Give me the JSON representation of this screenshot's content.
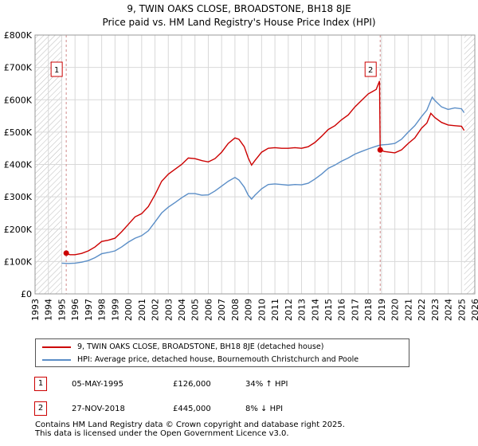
{
  "colors": {
    "price_line": "#cc0000",
    "hpi_line": "#5b8ec7",
    "marker_border": "#cc0000",
    "grid": "#d8d8d8"
  },
  "chart_data": {
    "type": "line",
    "title": "9, TWIN OAKS CLOSE, BROADSTONE, BH18 8JE",
    "subtitle": "Price paid vs. HM Land Registry's House Price Index (HPI)",
    "xlabel": "",
    "ylabel": "",
    "xlim": [
      1993,
      2026
    ],
    "ylim": [
      0,
      800000
    ],
    "x_ticks": [
      "1993",
      "1994",
      "1995",
      "1996",
      "1997",
      "1998",
      "1999",
      "2000",
      "2001",
      "2002",
      "2003",
      "2004",
      "2005",
      "2006",
      "2007",
      "2008",
      "2009",
      "2010",
      "2011",
      "2012",
      "2013",
      "2014",
      "2015",
      "2016",
      "2017",
      "2018",
      "2019",
      "2020",
      "2021",
      "2022",
      "2023",
      "2024",
      "2025",
      "2026"
    ],
    "y_ticks": [
      {
        "value": 0,
        "label": "£0"
      },
      {
        "value": 100000,
        "label": "£100K"
      },
      {
        "value": 200000,
        "label": "£200K"
      },
      {
        "value": 300000,
        "label": "£300K"
      },
      {
        "value": 400000,
        "label": "£400K"
      },
      {
        "value": 500000,
        "label": "£500K"
      },
      {
        "value": 600000,
        "label": "£600K"
      },
      {
        "value": 700000,
        "label": "£700K"
      },
      {
        "value": 800000,
        "label": "£800K"
      }
    ],
    "hatched_before": 1995.0,
    "hatched_after": 2025.2,
    "series": [
      {
        "name": "9, TWIN OAKS CLOSE, BROADSTONE, BH18 8JE (detached house)",
        "color": "#cc0000",
        "points": [
          [
            1995.34,
            126000
          ],
          [
            1995.6,
            121000
          ],
          [
            1996.0,
            121000
          ],
          [
            1996.5,
            125000
          ],
          [
            1997.0,
            133000
          ],
          [
            1997.5,
            145000
          ],
          [
            1998.0,
            162000
          ],
          [
            1998.5,
            166000
          ],
          [
            1999.0,
            172000
          ],
          [
            1999.5,
            192000
          ],
          [
            2000.0,
            215000
          ],
          [
            2000.5,
            238000
          ],
          [
            2001.0,
            248000
          ],
          [
            2001.5,
            270000
          ],
          [
            2002.0,
            306000
          ],
          [
            2002.5,
            348000
          ],
          [
            2003.0,
            370000
          ],
          [
            2003.5,
            385000
          ],
          [
            2004.0,
            400000
          ],
          [
            2004.5,
            420000
          ],
          [
            2005.0,
            418000
          ],
          [
            2005.5,
            412000
          ],
          [
            2006.0,
            408000
          ],
          [
            2006.5,
            418000
          ],
          [
            2007.0,
            438000
          ],
          [
            2007.5,
            465000
          ],
          [
            2008.0,
            482000
          ],
          [
            2008.3,
            478000
          ],
          [
            2008.7,
            455000
          ],
          [
            2009.0,
            420000
          ],
          [
            2009.25,
            398000
          ],
          [
            2009.5,
            412000
          ],
          [
            2010.0,
            438000
          ],
          [
            2010.5,
            450000
          ],
          [
            2011.0,
            452000
          ],
          [
            2011.5,
            450000
          ],
          [
            2012.0,
            450000
          ],
          [
            2012.5,
            452000
          ],
          [
            2013.0,
            450000
          ],
          [
            2013.5,
            455000
          ],
          [
            2014.0,
            468000
          ],
          [
            2014.5,
            487000
          ],
          [
            2015.0,
            508000
          ],
          [
            2015.5,
            520000
          ],
          [
            2016.0,
            538000
          ],
          [
            2016.5,
            553000
          ],
          [
            2017.0,
            578000
          ],
          [
            2017.5,
            598000
          ],
          [
            2018.0,
            618000
          ],
          [
            2018.3,
            625000
          ],
          [
            2018.6,
            632000
          ],
          [
            2018.85,
            658000
          ],
          [
            2018.9,
            445000
          ],
          [
            2019.2,
            440000
          ],
          [
            2019.6,
            438000
          ],
          [
            2020.0,
            436000
          ],
          [
            2020.5,
            445000
          ],
          [
            2021.0,
            465000
          ],
          [
            2021.5,
            482000
          ],
          [
            2022.0,
            512000
          ],
          [
            2022.4,
            528000
          ],
          [
            2022.7,
            558000
          ],
          [
            2023.0,
            545000
          ],
          [
            2023.5,
            530000
          ],
          [
            2024.0,
            522000
          ],
          [
            2024.5,
            520000
          ],
          [
            2025.0,
            518000
          ],
          [
            2025.2,
            505000
          ]
        ]
      },
      {
        "name": "HPI: Average price, detached house, Bournemouth Christchurch and Poole",
        "color": "#5b8ec7",
        "points": [
          [
            1995.0,
            95000
          ],
          [
            1995.5,
            94000
          ],
          [
            1996.0,
            95000
          ],
          [
            1996.5,
            98000
          ],
          [
            1997.0,
            103000
          ],
          [
            1997.5,
            112000
          ],
          [
            1998.0,
            124000
          ],
          [
            1998.5,
            128000
          ],
          [
            1999.0,
            133000
          ],
          [
            1999.5,
            145000
          ],
          [
            2000.0,
            160000
          ],
          [
            2000.5,
            172000
          ],
          [
            2001.0,
            180000
          ],
          [
            2001.5,
            195000
          ],
          [
            2002.0,
            222000
          ],
          [
            2002.5,
            250000
          ],
          [
            2003.0,
            268000
          ],
          [
            2003.5,
            282000
          ],
          [
            2004.0,
            297000
          ],
          [
            2004.5,
            310000
          ],
          [
            2005.0,
            310000
          ],
          [
            2005.5,
            305000
          ],
          [
            2006.0,
            306000
          ],
          [
            2006.5,
            318000
          ],
          [
            2007.0,
            333000
          ],
          [
            2007.5,
            348000
          ],
          [
            2008.0,
            360000
          ],
          [
            2008.3,
            352000
          ],
          [
            2008.7,
            330000
          ],
          [
            2009.0,
            305000
          ],
          [
            2009.25,
            293000
          ],
          [
            2009.5,
            305000
          ],
          [
            2010.0,
            325000
          ],
          [
            2010.5,
            338000
          ],
          [
            2011.0,
            340000
          ],
          [
            2011.5,
            338000
          ],
          [
            2012.0,
            336000
          ],
          [
            2012.5,
            338000
          ],
          [
            2013.0,
            337000
          ],
          [
            2013.5,
            342000
          ],
          [
            2014.0,
            355000
          ],
          [
            2014.5,
            370000
          ],
          [
            2015.0,
            388000
          ],
          [
            2015.5,
            398000
          ],
          [
            2016.0,
            410000
          ],
          [
            2016.5,
            420000
          ],
          [
            2017.0,
            432000
          ],
          [
            2017.5,
            440000
          ],
          [
            2018.0,
            448000
          ],
          [
            2018.5,
            455000
          ],
          [
            2018.9,
            460000
          ],
          [
            2019.5,
            462000
          ],
          [
            2020.0,
            465000
          ],
          [
            2020.5,
            478000
          ],
          [
            2021.0,
            500000
          ],
          [
            2021.5,
            520000
          ],
          [
            2022.0,
            548000
          ],
          [
            2022.4,
            568000
          ],
          [
            2022.8,
            608000
          ],
          [
            2023.0,
            598000
          ],
          [
            2023.5,
            578000
          ],
          [
            2024.0,
            570000
          ],
          [
            2024.5,
            575000
          ],
          [
            2025.0,
            572000
          ],
          [
            2025.2,
            560000
          ]
        ]
      }
    ],
    "annotations": [
      {
        "id": "1",
        "x": 1995.34,
        "y": 126000
      },
      {
        "id": "2",
        "x": 2018.9,
        "y": 445000
      }
    ]
  },
  "legend": {
    "items": [
      "9, TWIN OAKS CLOSE, BROADSTONE, BH18 8JE (detached house)",
      "HPI: Average price, detached house, Bournemouth Christchurch and Poole"
    ]
  },
  "transactions": [
    {
      "id": "1",
      "date": "05-MAY-1995",
      "price": "£126,000",
      "hpi": "34% ↑ HPI"
    },
    {
      "id": "2",
      "date": "27-NOV-2018",
      "price": "£445,000",
      "hpi": "8% ↓ HPI"
    }
  ],
  "footer": {
    "line1": "Contains HM Land Registry data © Crown copyright and database right 2025.",
    "line2": "This data is licensed under the Open Government Licence v3.0."
  }
}
